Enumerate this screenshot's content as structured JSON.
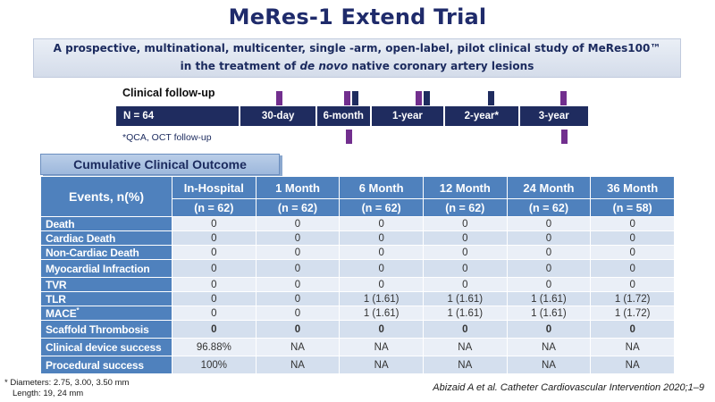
{
  "title": "MeRes-1 Extend Trial",
  "subtitle": {
    "line1": "A prospective, multinational, multicenter, single -arm, open-label, pilot clinical study of MeRes100™",
    "line2_prefix": "in the treatment of ",
    "line2_italic": "de novo",
    "line2_suffix": " native coronary artery lesions"
  },
  "timeline": {
    "label": "Clinical follow-up",
    "n_label": "N = 64",
    "segments": [
      "30-day",
      "6-month",
      "1-year",
      "2-year*",
      "3-year"
    ],
    "footnote": "*QCA, OCT follow-up"
  },
  "table": {
    "section_title": "Cumulative Clinical Outcome",
    "corner_label": "Events, n(%)",
    "columns": [
      "In-Hospital",
      "1 Month",
      "6 Month",
      "12 Month",
      "24 Month",
      "36 Month"
    ],
    "subcolumns": [
      "(n = 62)",
      "(n = 62)",
      "(n = 62)",
      "(n = 62)",
      "(n = 62)",
      "(n = 58)"
    ],
    "rows": [
      {
        "label": "Death",
        "values": [
          "0",
          "0",
          "0",
          "0",
          "0",
          "0"
        ]
      },
      {
        "label": "Cardiac Death",
        "values": [
          "0",
          "0",
          "0",
          "0",
          "0",
          "0"
        ]
      },
      {
        "label": "Non-Cardiac Death",
        "values": [
          "0",
          "0",
          "0",
          "0",
          "0",
          "0"
        ]
      },
      {
        "label": "Myocardial Infraction",
        "values": [
          "0",
          "0",
          "0",
          "0",
          "0",
          "0"
        ]
      },
      {
        "label": "TVR",
        "values": [
          "0",
          "0",
          "0",
          "0",
          "0",
          "0"
        ]
      },
      {
        "label": "TLR",
        "values": [
          "0",
          "0",
          "1 (1.61)",
          "1 (1.61)",
          "1 (1.61)",
          "1 (1.72)"
        ]
      },
      {
        "label": "MACE",
        "sup": "*",
        "values": [
          "0",
          "0",
          "1 (1.61)",
          "1 (1.61)",
          "1 (1.61)",
          "1 (1.72)"
        ]
      },
      {
        "label": "Scaffold Thrombosis",
        "bold": true,
        "values": [
          "0",
          "0",
          "0",
          "0",
          "0",
          "0"
        ]
      },
      {
        "label": "Clinical device success",
        "values": [
          "96.88%",
          "NA",
          "NA",
          "NA",
          "NA",
          "NA"
        ]
      },
      {
        "label": "Procedural success",
        "values": [
          "100%",
          "NA",
          "NA",
          "NA",
          "NA",
          "NA"
        ]
      }
    ]
  },
  "footnotes": {
    "line1": "* Diameters: 2.75, 3.00, 3.50 mm",
    "line2": "Length: 19, 24 mm"
  },
  "citation": "Abizaid A et al. Catheter Cardiovascular Intervention 2020;1–9",
  "colors": {
    "title_navy": "#1F2B6B",
    "bar_navy": "#1F2C5F",
    "tick_purple": "#722F8E",
    "table_header_blue": "#4F81BD",
    "band_light": "#EAEFF7",
    "band_dark": "#D4DFEE",
    "section_box_fill": "#A9C2E2"
  }
}
